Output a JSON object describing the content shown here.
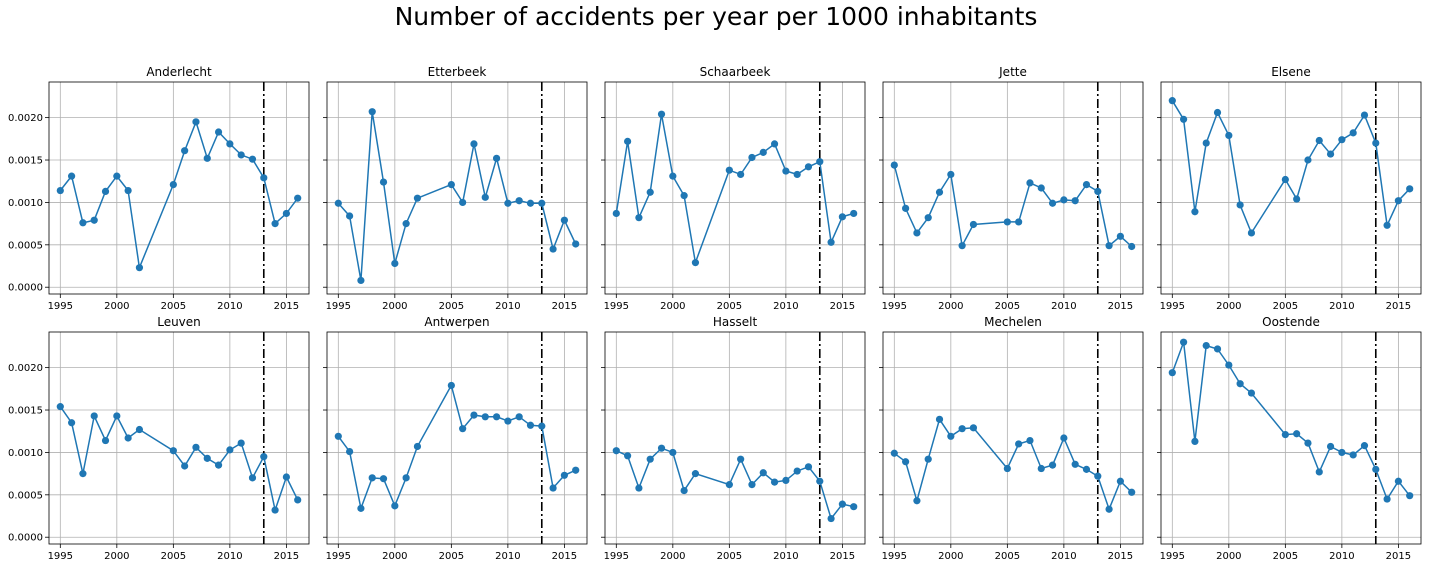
{
  "title": "Number of accidents per year per 1000 inhabitants",
  "colors": {
    "line": "#1f77b4",
    "marker": "#1f77b4",
    "grid": "#b0b0b0",
    "vline": "#000000"
  },
  "chart_data": [
    {
      "type": "line",
      "title": "Anderlecht",
      "xlim": [
        1994.0,
        2017.0
      ],
      "ylim": [
        -8e-05,
        0.00242
      ],
      "xticks": [
        1995,
        2000,
        2005,
        2010,
        2015
      ],
      "yticks": [
        0.0,
        0.0005,
        0.001,
        0.0015,
        0.002
      ],
      "ytick_labels": [
        "0.0000",
        "0.0005",
        "0.0010",
        "0.0015",
        "0.0020"
      ],
      "grid": true,
      "vline_x": 2013,
      "x": [
        1995,
        1996,
        1997,
        1998,
        1999,
        2000,
        2001,
        2002,
        2005,
        2006,
        2007,
        2008,
        2009,
        2010,
        2011,
        2012,
        2013,
        2014,
        2015,
        2016
      ],
      "y": [
        0.00114,
        0.00131,
        0.00076,
        0.00079,
        0.00113,
        0.00131,
        0.00114,
        0.00023,
        0.00121,
        0.00161,
        0.00195,
        0.00152,
        0.00183,
        0.00169,
        0.00156,
        0.00151,
        0.00129,
        0.00075,
        0.00087,
        0.00105
      ]
    },
    {
      "type": "line",
      "title": "Etterbeek",
      "xlim": [
        1994.0,
        2017.0
      ],
      "ylim": [
        -8e-05,
        0.00242
      ],
      "xticks": [
        1995,
        2000,
        2005,
        2010,
        2015
      ],
      "yticks": [
        0.0,
        0.0005,
        0.001,
        0.0015,
        0.002
      ],
      "ytick_labels": [
        "",
        "",
        "",
        "",
        ""
      ],
      "grid": true,
      "vline_x": 2013,
      "x": [
        1995,
        1996,
        1997,
        1998,
        1999,
        2000,
        2001,
        2002,
        2005,
        2006,
        2007,
        2008,
        2009,
        2010,
        2011,
        2012,
        2013,
        2014,
        2015,
        2016
      ],
      "y": [
        0.00099,
        0.00084,
        8e-05,
        0.00207,
        0.00124,
        0.00028,
        0.00075,
        0.00105,
        0.00121,
        0.001,
        0.00169,
        0.00106,
        0.00152,
        0.00099,
        0.00102,
        0.00099,
        0.00099,
        0.00045,
        0.00079,
        0.00051
      ]
    },
    {
      "type": "line",
      "title": "Schaarbeek",
      "xlim": [
        1994.0,
        2017.0
      ],
      "ylim": [
        -8e-05,
        0.00242
      ],
      "xticks": [
        1995,
        2000,
        2005,
        2010,
        2015
      ],
      "yticks": [
        0.0,
        0.0005,
        0.001,
        0.0015,
        0.002
      ],
      "ytick_labels": [
        "",
        "",
        "",
        "",
        ""
      ],
      "grid": true,
      "vline_x": 2013,
      "x": [
        1995,
        1996,
        1997,
        1998,
        1999,
        2000,
        2001,
        2002,
        2005,
        2006,
        2007,
        2008,
        2009,
        2010,
        2011,
        2012,
        2013,
        2014,
        2015,
        2016
      ],
      "y": [
        0.00087,
        0.00172,
        0.00082,
        0.00112,
        0.00204,
        0.00131,
        0.00108,
        0.00029,
        0.00138,
        0.00133,
        0.00153,
        0.00159,
        0.00169,
        0.00137,
        0.00133,
        0.00142,
        0.00148,
        0.00053,
        0.00083,
        0.00087
      ]
    },
    {
      "type": "line",
      "title": "Jette",
      "xlim": [
        1994.0,
        2017.0
      ],
      "ylim": [
        -8e-05,
        0.00242
      ],
      "xticks": [
        1995,
        2000,
        2005,
        2010,
        2015
      ],
      "yticks": [
        0.0,
        0.0005,
        0.001,
        0.0015,
        0.002
      ],
      "ytick_labels": [
        "",
        "",
        "",
        "",
        ""
      ],
      "grid": true,
      "vline_x": 2013,
      "x": [
        1995,
        1996,
        1997,
        1998,
        1999,
        2000,
        2001,
        2002,
        2005,
        2006,
        2007,
        2008,
        2009,
        2010,
        2011,
        2012,
        2013,
        2014,
        2015,
        2016
      ],
      "y": [
        0.00144,
        0.00093,
        0.00064,
        0.00082,
        0.00112,
        0.00133,
        0.00049,
        0.00074,
        0.00077,
        0.00077,
        0.00123,
        0.00117,
        0.00099,
        0.00103,
        0.00102,
        0.00121,
        0.00113,
        0.00049,
        0.0006,
        0.00048
      ]
    },
    {
      "type": "line",
      "title": "Elsene",
      "xlim": [
        1994.0,
        2017.0
      ],
      "ylim": [
        -8e-05,
        0.00242
      ],
      "xticks": [
        1995,
        2000,
        2005,
        2010,
        2015
      ],
      "yticks": [
        0.0,
        0.0005,
        0.001,
        0.0015,
        0.002
      ],
      "ytick_labels": [
        "",
        "",
        "",
        "",
        ""
      ],
      "grid": true,
      "vline_x": 2013,
      "x": [
        1995,
        1996,
        1997,
        1998,
        1999,
        2000,
        2001,
        2002,
        2005,
        2006,
        2007,
        2008,
        2009,
        2010,
        2011,
        2012,
        2013,
        2014,
        2015,
        2016
      ],
      "y": [
        0.0022,
        0.00198,
        0.00089,
        0.0017,
        0.00206,
        0.00179,
        0.00097,
        0.00064,
        0.00127,
        0.00104,
        0.0015,
        0.00173,
        0.00157,
        0.00174,
        0.00182,
        0.00203,
        0.0017,
        0.00073,
        0.00102,
        0.00116
      ]
    },
    {
      "type": "line",
      "title": "Leuven",
      "xlim": [
        1994.0,
        2017.0
      ],
      "ylim": [
        -8e-05,
        0.00242
      ],
      "xticks": [
        1995,
        2000,
        2005,
        2010,
        2015
      ],
      "yticks": [
        0.0,
        0.0005,
        0.001,
        0.0015,
        0.002
      ],
      "ytick_labels": [
        "0.0000",
        "0.0005",
        "0.0010",
        "0.0015",
        "0.0020"
      ],
      "grid": true,
      "vline_x": 2013,
      "x": [
        1995,
        1996,
        1997,
        1998,
        1999,
        2000,
        2001,
        2002,
        2005,
        2006,
        2007,
        2008,
        2009,
        2010,
        2011,
        2012,
        2013,
        2014,
        2015,
        2016
      ],
      "y": [
        0.00154,
        0.00135,
        0.00075,
        0.00143,
        0.00114,
        0.00143,
        0.00117,
        0.00127,
        0.00102,
        0.00084,
        0.00106,
        0.00093,
        0.00085,
        0.00103,
        0.00111,
        0.0007,
        0.00095,
        0.00032,
        0.00071,
        0.00044
      ]
    },
    {
      "type": "line",
      "title": "Antwerpen",
      "xlim": [
        1994.0,
        2017.0
      ],
      "ylim": [
        -8e-05,
        0.00242
      ],
      "xticks": [
        1995,
        2000,
        2005,
        2010,
        2015
      ],
      "yticks": [
        0.0,
        0.0005,
        0.001,
        0.0015,
        0.002
      ],
      "ytick_labels": [
        "",
        "",
        "",
        "",
        ""
      ],
      "grid": true,
      "vline_x": 2013,
      "x": [
        1995,
        1996,
        1997,
        1998,
        1999,
        2000,
        2001,
        2002,
        2005,
        2006,
        2007,
        2008,
        2009,
        2010,
        2011,
        2012,
        2013,
        2014,
        2015,
        2016
      ],
      "y": [
        0.00119,
        0.00101,
        0.00034,
        0.0007,
        0.00069,
        0.00037,
        0.0007,
        0.00107,
        0.00179,
        0.00128,
        0.00144,
        0.00142,
        0.00142,
        0.00137,
        0.00142,
        0.00132,
        0.00131,
        0.00058,
        0.00073,
        0.00079
      ]
    },
    {
      "type": "line",
      "title": "Hasselt",
      "xlim": [
        1994.0,
        2017.0
      ],
      "ylim": [
        -8e-05,
        0.00242
      ],
      "xticks": [
        1995,
        2000,
        2005,
        2010,
        2015
      ],
      "yticks": [
        0.0,
        0.0005,
        0.001,
        0.0015,
        0.002
      ],
      "ytick_labels": [
        "",
        "",
        "",
        "",
        ""
      ],
      "grid": true,
      "vline_x": 2013,
      "x": [
        1995,
        1996,
        1997,
        1998,
        1999,
        2000,
        2001,
        2002,
        2005,
        2006,
        2007,
        2008,
        2009,
        2010,
        2011,
        2012,
        2013,
        2014,
        2015,
        2016
      ],
      "y": [
        0.00102,
        0.00096,
        0.00058,
        0.00092,
        0.00105,
        0.001,
        0.00055,
        0.00075,
        0.00062,
        0.00092,
        0.00062,
        0.00076,
        0.00065,
        0.00067,
        0.00078,
        0.00083,
        0.00066,
        0.00022,
        0.00039,
        0.00036
      ]
    },
    {
      "type": "line",
      "title": "Mechelen",
      "xlim": [
        1994.0,
        2017.0
      ],
      "ylim": [
        -8e-05,
        0.00242
      ],
      "xticks": [
        1995,
        2000,
        2005,
        2010,
        2015
      ],
      "yticks": [
        0.0,
        0.0005,
        0.001,
        0.0015,
        0.002
      ],
      "ytick_labels": [
        "",
        "",
        "",
        "",
        ""
      ],
      "grid": true,
      "vline_x": 2013,
      "x": [
        1995,
        1996,
        1997,
        1998,
        1999,
        2000,
        2001,
        2002,
        2005,
        2006,
        2007,
        2008,
        2009,
        2010,
        2011,
        2012,
        2013,
        2014,
        2015,
        2016
      ],
      "y": [
        0.00099,
        0.00089,
        0.00043,
        0.00092,
        0.00139,
        0.00119,
        0.00128,
        0.00129,
        0.00081,
        0.0011,
        0.00114,
        0.00081,
        0.00085,
        0.00117,
        0.00086,
        0.0008,
        0.00072,
        0.00033,
        0.00066,
        0.00053
      ]
    },
    {
      "type": "line",
      "title": "Oostende",
      "xlim": [
        1994.0,
        2017.0
      ],
      "ylim": [
        -8e-05,
        0.00242
      ],
      "xticks": [
        1995,
        2000,
        2005,
        2010,
        2015
      ],
      "yticks": [
        0.0,
        0.0005,
        0.001,
        0.0015,
        0.002
      ],
      "ytick_labels": [
        "",
        "",
        "",
        "",
        ""
      ],
      "grid": true,
      "vline_x": 2013,
      "x": [
        1995,
        1996,
        1997,
        1998,
        1999,
        2000,
        2001,
        2002,
        2005,
        2006,
        2007,
        2008,
        2009,
        2010,
        2011,
        2012,
        2013,
        2014,
        2015,
        2016
      ],
      "y": [
        0.00194,
        0.0023,
        0.00113,
        0.00226,
        0.00222,
        0.00203,
        0.00181,
        0.0017,
        0.00121,
        0.00122,
        0.00111,
        0.00077,
        0.00107,
        0.001,
        0.00097,
        0.00108,
        0.0008,
        0.00045,
        0.00066,
        0.00049
      ]
    }
  ]
}
